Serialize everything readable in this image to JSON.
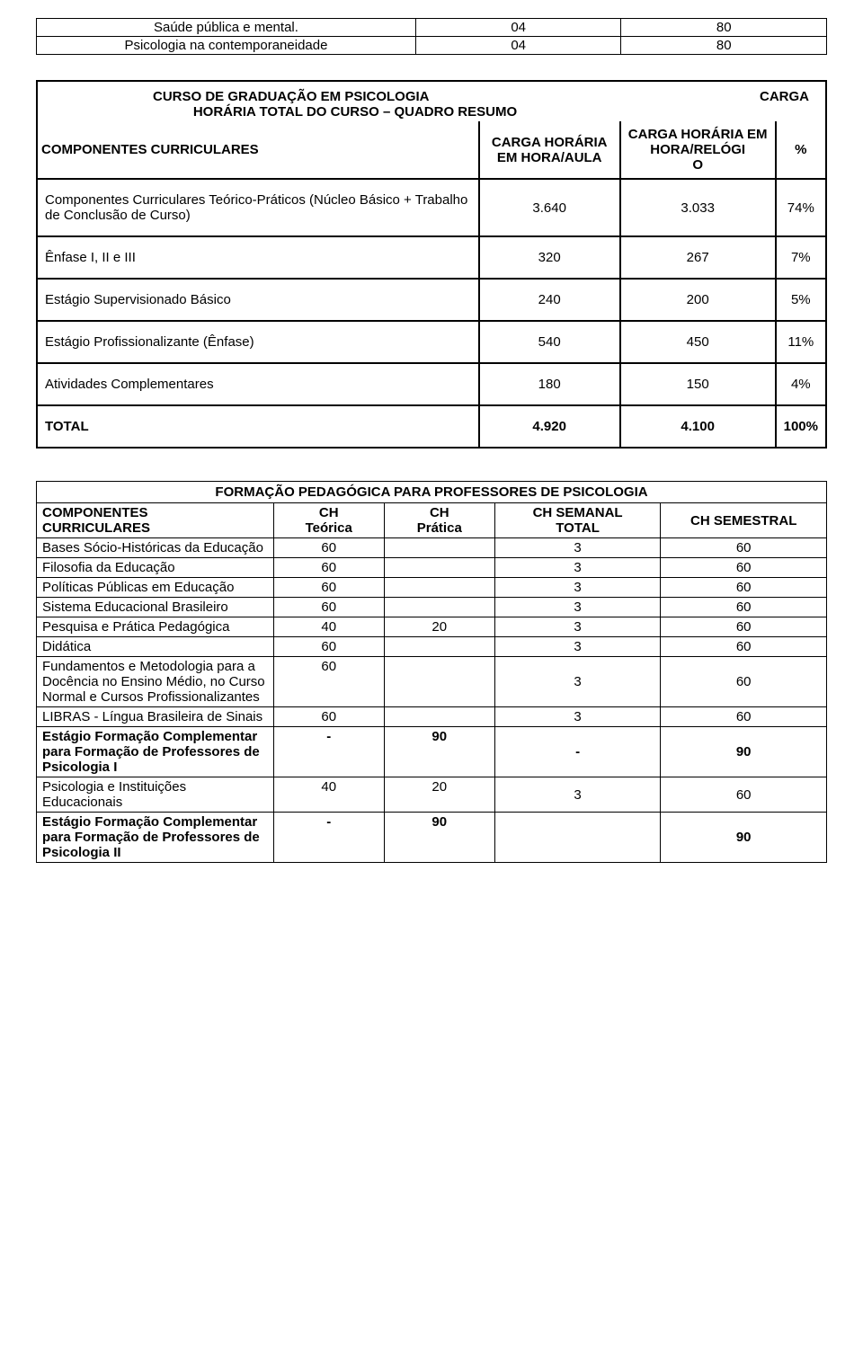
{
  "topTable": {
    "rows": [
      {
        "name": "Saúde pública e mental.",
        "v1": "04",
        "v2": "80"
      },
      {
        "name": "Psicologia na contemporaneidade",
        "v1": "04",
        "v2": "80"
      }
    ]
  },
  "summaryTable": {
    "titleLine1": "CURSO DE GRADUAÇÃO EM PSICOLOGIA",
    "titleLine2": "HORÁRIA TOTAL DO CURSO – QUADRO RESUMO",
    "titleRight": "CARGA",
    "headers": {
      "componentes": "COMPONENTES CURRICULARES",
      "cargaAula": "CARGA HORÁRIA EM HORA/AULA",
      "cargaRelogio": "CARGA HORÁRIA EM HORA/RELÓGI\nO",
      "pct": "%"
    },
    "rows": [
      {
        "desc": "Componentes Curriculares Teórico-Práticos (Núcleo Básico + Trabalho de Conclusão de Curso)",
        "aula": "3.640",
        "relogio": "3.033",
        "pct": "74%"
      },
      {
        "desc": "Ênfase I, II e III",
        "aula": "320",
        "relogio": "267",
        "pct": "7%"
      },
      {
        "desc": "Estágio Supervisionado Básico",
        "aula": "240",
        "relogio": "200",
        "pct": "5%"
      },
      {
        "desc": "Estágio Profissionalizante (Ênfase)",
        "aula": "540",
        "relogio": "450",
        "pct": "11%"
      },
      {
        "desc": "Atividades Complementares",
        "aula": "180",
        "relogio": "150",
        "pct": "4%"
      }
    ],
    "total": {
      "label": "TOTAL",
      "aula": "4.920",
      "relogio": "4.100",
      "pct": "100%"
    }
  },
  "formacaoTable": {
    "sectionTitle": "FORMAÇÃO PEDAGÓGICA PARA PROFESSORES DE PSICOLOGIA",
    "headers": {
      "componentes": "COMPONENTES CURRICULARES",
      "teorica": "CH Teórica",
      "pratica": "CH Prática",
      "semanal": "CH SEMANAL TOTAL",
      "semestral": "CH SEMESTRAL"
    },
    "rows": [
      {
        "name": "Bases Sócio-Históricas da Educação",
        "t": "60",
        "p": "",
        "s": "3",
        "sem": "60",
        "bold": false
      },
      {
        "name": "Filosofia da Educação",
        "t": "60",
        "p": "",
        "s": "3",
        "sem": "60",
        "bold": false
      },
      {
        "name": "Políticas Públicas em Educação",
        "t": "60",
        "p": "",
        "s": "3",
        "sem": "60",
        "bold": false
      },
      {
        "name": "Sistema Educacional Brasileiro",
        "t": "60",
        "p": "",
        "s": "3",
        "sem": "60",
        "bold": false
      },
      {
        "name": "Pesquisa e Prática Pedagógica",
        "t": "40",
        "p": "20",
        "s": "3",
        "sem": "60",
        "bold": false
      },
      {
        "name": "Didática",
        "t": "60",
        "p": "",
        "s": "3",
        "sem": "60",
        "bold": false
      },
      {
        "name": "Fundamentos e Metodologia para a Docência no Ensino Médio, no Curso Normal e Cursos Profissionalizantes",
        "t": "60",
        "p": "",
        "s": "3",
        "sem": "60",
        "bold": false
      },
      {
        "name": "LIBRAS - Língua Brasileira de Sinais",
        "t": "60",
        "p": "",
        "s": "3",
        "sem": "60",
        "bold": false
      },
      {
        "name": "Estágio Formação Complementar para Formação de Professores de Psicologia I",
        "t": "-",
        "p": "90",
        "s": "-",
        "sem": "90",
        "bold": true
      },
      {
        "name": "Psicologia e Instituições Educacionais",
        "t": "40",
        "p": "20",
        "s": "3",
        "sem": "60",
        "bold": false
      },
      {
        "name": "Estágio Formação Complementar para Formação de Professores de Psicologia II",
        "t": "-",
        "p": "90",
        "s": "",
        "sem": "90",
        "bold": true
      }
    ]
  }
}
